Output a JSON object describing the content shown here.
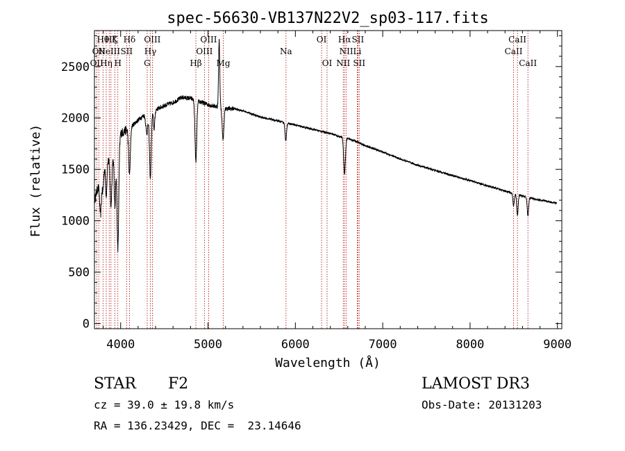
{
  "chart_data": {
    "type": "line",
    "title": "spec-56630-VB137N22V2_sp03-117.fits",
    "xlabel": "Wavelength (Å)",
    "ylabel": "Flux (relative)",
    "xlim": [
      3700,
      9050
    ],
    "ylim": [
      -50,
      2850
    ],
    "xticks": [
      4000,
      5000,
      6000,
      7000,
      8000,
      9000
    ],
    "yticks": [
      0,
      500,
      1000,
      1500,
      2000,
      2500
    ],
    "color": "#000000",
    "line_color": "#aa0000",
    "continuum": [
      [
        3700,
        1200
      ],
      [
        3750,
        1350
      ],
      [
        3800,
        1500
      ],
      [
        3850,
        1580
      ],
      [
        3900,
        1600
      ],
      [
        3950,
        1650
      ],
      [
        4000,
        1850
      ],
      [
        4100,
        1900
      ],
      [
        4200,
        1980
      ],
      [
        4300,
        2050
      ],
      [
        4400,
        2080
      ],
      [
        4500,
        2120
      ],
      [
        4600,
        2150
      ],
      [
        4700,
        2200
      ],
      [
        4800,
        2190
      ],
      [
        4900,
        2160
      ],
      [
        5000,
        2130
      ],
      [
        5100,
        2110
      ],
      [
        5200,
        2090
      ],
      [
        5300,
        2090
      ],
      [
        5400,
        2070
      ],
      [
        5500,
        2040
      ],
      [
        5600,
        2010
      ],
      [
        5700,
        1990
      ],
      [
        5800,
        1970
      ],
      [
        5900,
        1950
      ],
      [
        6000,
        1930
      ],
      [
        6100,
        1910
      ],
      [
        6200,
        1890
      ],
      [
        6300,
        1870
      ],
      [
        6400,
        1850
      ],
      [
        6500,
        1820
      ],
      [
        6600,
        1800
      ],
      [
        6700,
        1770
      ],
      [
        6800,
        1730
      ],
      [
        6900,
        1700
      ],
      [
        7000,
        1670
      ],
      [
        7200,
        1600
      ],
      [
        7400,
        1540
      ],
      [
        7600,
        1490
      ],
      [
        7800,
        1440
      ],
      [
        8000,
        1390
      ],
      [
        8200,
        1340
      ],
      [
        8400,
        1290
      ],
      [
        8600,
        1240
      ],
      [
        8800,
        1200
      ],
      [
        9000,
        1170
      ]
    ],
    "absorption": [
      [
        3770,
        350,
        10
      ],
      [
        3797,
        200,
        8
      ],
      [
        3835,
        300,
        8
      ],
      [
        3889,
        450,
        9
      ],
      [
        3934,
        500,
        8
      ],
      [
        3968,
        1000,
        10
      ],
      [
        4101,
        450,
        10
      ],
      [
        4300,
        200,
        12
      ],
      [
        4340,
        650,
        10
      ],
      [
        4383,
        180,
        8
      ],
      [
        4861,
        600,
        10
      ],
      [
        5172,
        300,
        10
      ],
      [
        5890,
        180,
        8
      ],
      [
        6563,
        350,
        10
      ],
      [
        8498,
        120,
        8
      ],
      [
        8542,
        200,
        8
      ],
      [
        8662,
        180,
        8
      ]
    ],
    "emission": [
      [
        5128,
        650,
        7
      ]
    ],
    "lines": [
      {
        "wl": 3726,
        "label": "OII",
        "row": 2
      },
      {
        "wl": 3750,
        "label": "OII",
        "row": 1
      },
      {
        "wl": 3798,
        "label": "Hθ",
        "row": 0
      },
      {
        "wl": 3835,
        "label": "Hη",
        "row": 2
      },
      {
        "wl": 3869,
        "label": "NeIII",
        "row": 1
      },
      {
        "wl": 3889,
        "label": "Hζ",
        "row": 0
      },
      {
        "wl": 3933,
        "label": "K",
        "row": 0
      },
      {
        "wl": 3968,
        "label": "H",
        "row": 2
      },
      {
        "wl": 4068,
        "label": "SII",
        "row": 1
      },
      {
        "wl": 4101,
        "label": "Hδ",
        "row": 0
      },
      {
        "wl": 4304,
        "label": "G",
        "row": 2
      },
      {
        "wl": 4340,
        "label": "Hγ",
        "row": 1
      },
      {
        "wl": 4363,
        "label": "OIII",
        "row": 0
      },
      {
        "wl": 4861,
        "label": "Hβ",
        "row": 2
      },
      {
        "wl": 4959,
        "label": "OIII",
        "row": 1
      },
      {
        "wl": 5007,
        "label": "OIII",
        "row": 0
      },
      {
        "wl": 5175,
        "label": "Mg",
        "row": 2
      },
      {
        "wl": 5893,
        "label": "Na",
        "row": 1
      },
      {
        "wl": 6300,
        "label": "OI",
        "row": 0
      },
      {
        "wl": 6363,
        "label": "OI",
        "row": 2
      },
      {
        "wl": 6548,
        "label": "NII",
        "row": 2
      },
      {
        "wl": 6563,
        "label": "Hα",
        "row": 0
      },
      {
        "wl": 6583,
        "label": "NII",
        "row": 1
      },
      {
        "wl": 6708,
        "label": "Li",
        "row": 1
      },
      {
        "wl": 6716,
        "label": "SII",
        "row": 0
      },
      {
        "wl": 6731,
        "label": "SII",
        "row": 2
      },
      {
        "wl": 8498,
        "label": "CaII",
        "row": 1
      },
      {
        "wl": 8542,
        "label": "CaII",
        "row": 0
      },
      {
        "wl": 8662,
        "label": "CaII",
        "row": 2
      }
    ]
  },
  "info": {
    "class_label": "STAR",
    "subclass": "F2",
    "survey": "LAMOST DR3",
    "cz": "cz = 39.0 ± 19.8 km/s",
    "obs_date": "Obs-Date: 20131203",
    "radec": "RA = 136.23429, DEC =  23.14646"
  }
}
